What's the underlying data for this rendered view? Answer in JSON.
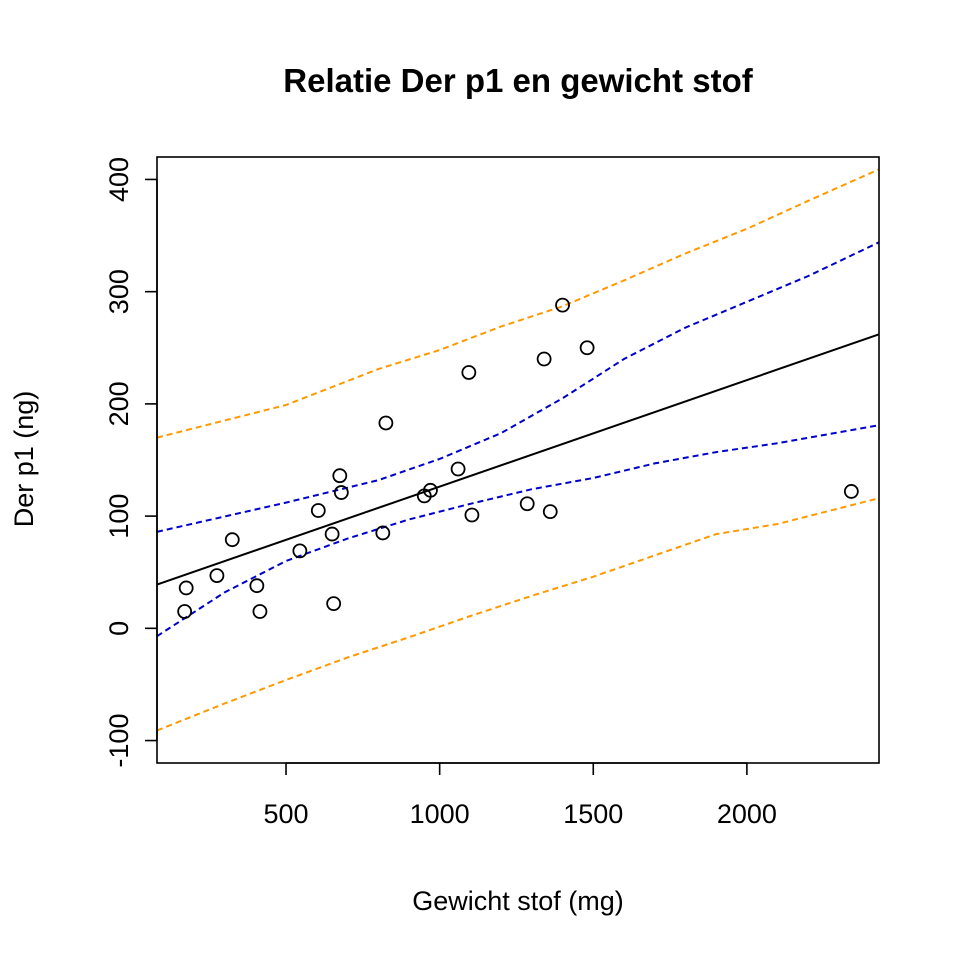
{
  "chart_data": {
    "type": "scatter",
    "title": "Relatie Der p1 en gewicht stof",
    "xlabel": "Gewicht stof (mg)",
    "ylabel": "Der p1 (ng)",
    "xlim": [
      80,
      2430
    ],
    "ylim": [
      -120,
      420
    ],
    "x_ticks": [
      500,
      1000,
      1500,
      2000
    ],
    "y_ticks": [
      -100,
      0,
      100,
      200,
      300,
      400
    ],
    "grid": false,
    "legend": "none",
    "points": [
      {
        "x": 170,
        "y": 15
      },
      {
        "x": 175,
        "y": 36
      },
      {
        "x": 275,
        "y": 47
      },
      {
        "x": 325,
        "y": 79
      },
      {
        "x": 405,
        "y": 38
      },
      {
        "x": 415,
        "y": 15
      },
      {
        "x": 545,
        "y": 69
      },
      {
        "x": 605,
        "y": 105
      },
      {
        "x": 650,
        "y": 84
      },
      {
        "x": 655,
        "y": 22
      },
      {
        "x": 675,
        "y": 136
      },
      {
        "x": 680,
        "y": 121
      },
      {
        "x": 815,
        "y": 85
      },
      {
        "x": 825,
        "y": 183
      },
      {
        "x": 950,
        "y": 118
      },
      {
        "x": 970,
        "y": 123
      },
      {
        "x": 1060,
        "y": 142
      },
      {
        "x": 1095,
        "y": 228
      },
      {
        "x": 1105,
        "y": 101
      },
      {
        "x": 1285,
        "y": 111
      },
      {
        "x": 1340,
        "y": 240
      },
      {
        "x": 1360,
        "y": 104
      },
      {
        "x": 1400,
        "y": 288
      },
      {
        "x": 1480,
        "y": 250
      },
      {
        "x": 2340,
        "y": 122
      }
    ],
    "fit_line": {
      "color": "#000000",
      "points": [
        [
          80,
          39
        ],
        [
          2430,
          262
        ]
      ]
    },
    "confidence_band": {
      "color": "#0000cc",
      "upper": [
        [
          80,
          86
        ],
        [
          500,
          112
        ],
        [
          800,
          132
        ],
        [
          1000,
          151
        ],
        [
          1200,
          174
        ],
        [
          1400,
          205
        ],
        [
          1600,
          240
        ],
        [
          1800,
          268
        ],
        [
          2000,
          291
        ],
        [
          2200,
          314
        ],
        [
          2430,
          344
        ]
      ],
      "lower": [
        [
          80,
          -7
        ],
        [
          300,
          32
        ],
        [
          500,
          60
        ],
        [
          700,
          80
        ],
        [
          900,
          97
        ],
        [
          1100,
          111
        ],
        [
          1300,
          124
        ],
        [
          1500,
          134
        ],
        [
          1700,
          147
        ],
        [
          1900,
          157
        ],
        [
          2100,
          165
        ],
        [
          2430,
          181
        ]
      ]
    },
    "prediction_band": {
      "color": "#ff9900",
      "upper": [
        [
          80,
          170
        ],
        [
          500,
          199
        ],
        [
          800,
          231
        ],
        [
          1000,
          248
        ],
        [
          1200,
          269
        ],
        [
          1400,
          287
        ],
        [
          1600,
          310
        ],
        [
          1800,
          334
        ],
        [
          2000,
          356
        ],
        [
          2200,
          381
        ],
        [
          2430,
          409
        ]
      ],
      "lower": [
        [
          80,
          -91
        ],
        [
          300,
          -67
        ],
        [
          500,
          -46
        ],
        [
          700,
          -26
        ],
        [
          900,
          -8
        ],
        [
          1100,
          11
        ],
        [
          1300,
          29
        ],
        [
          1500,
          46
        ],
        [
          1700,
          65
        ],
        [
          1900,
          84
        ],
        [
          2100,
          93
        ],
        [
          2430,
          116
        ]
      ]
    }
  }
}
